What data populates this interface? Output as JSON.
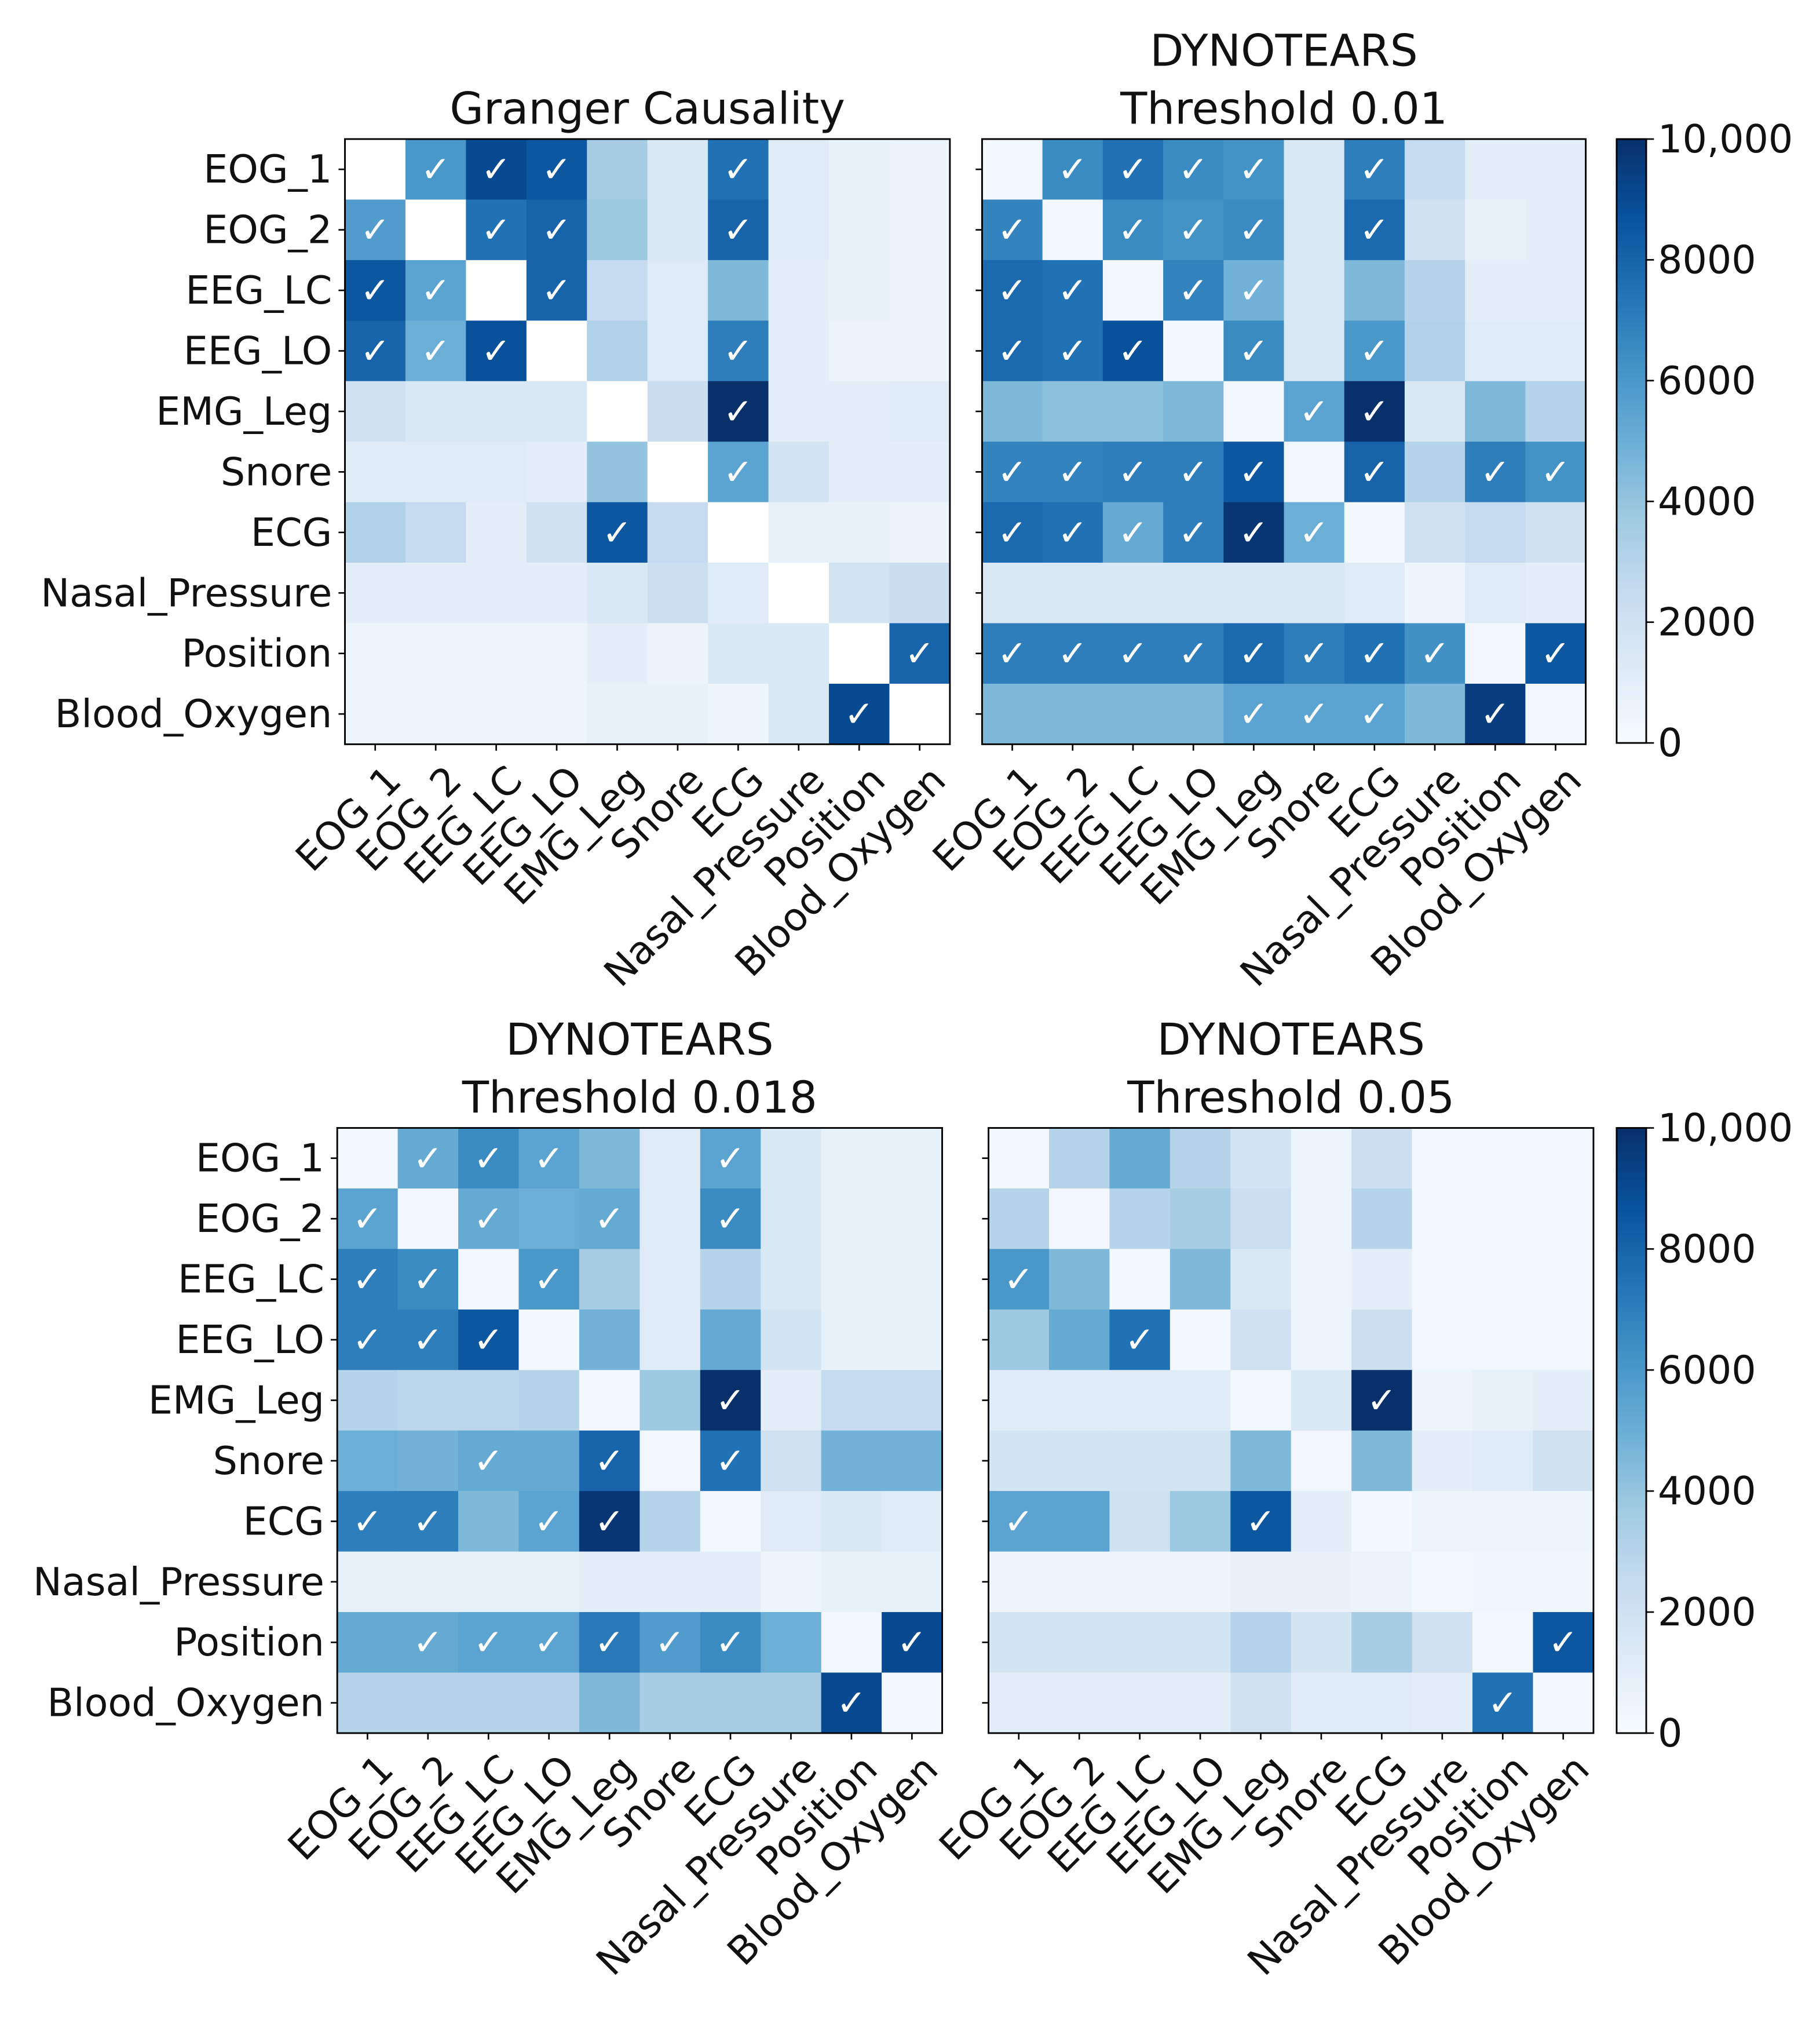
{
  "chart_data": {
    "type": "heatmap",
    "labels": [
      "EOG_1",
      "EOG_2",
      "EEG_LC",
      "EEG_LO",
      "EMG_Leg",
      "Snore",
      "ECG",
      "Nasal_Pressure",
      "Position",
      "Blood_Oxygen"
    ],
    "check_glyph": "✓",
    "colormap": [
      "#f7fbff",
      "#deebf7",
      "#c6dbef",
      "#9ecae1",
      "#6baed6",
      "#4292c6",
      "#2171b5",
      "#08519c",
      "#08306b"
    ],
    "colorbar": {
      "min": 0,
      "max": 10000,
      "ticks": [
        0,
        2000,
        4000,
        6000,
        8000,
        10000
      ],
      "tick_labels": [
        "0",
        "2000",
        "4000",
        "6000",
        "8000",
        "10,000"
      ]
    },
    "panels": [
      {
        "title_lines": [
          "Granger Causality"
        ],
        "diagonal_blank": true,
        "values": [
          [
            0,
            6000,
            9000,
            8500,
            3500,
            1500,
            7500,
            1200,
            800,
            600
          ],
          [
            5800,
            0,
            7500,
            8000,
            3800,
            1500,
            8000,
            1200,
            800,
            600
          ],
          [
            8500,
            5500,
            0,
            8000,
            2500,
            1300,
            4500,
            1000,
            800,
            600
          ],
          [
            8000,
            5000,
            8800,
            0,
            3200,
            1300,
            7000,
            1000,
            600,
            600
          ],
          [
            2000,
            1500,
            1500,
            1500,
            0,
            2300,
            10000,
            1000,
            1000,
            1200
          ],
          [
            1200,
            1200,
            1200,
            1000,
            4000,
            0,
            5500,
            1800,
            1000,
            1000
          ],
          [
            3200,
            2500,
            1000,
            2000,
            8500,
            2500,
            0,
            800,
            800,
            600
          ],
          [
            1000,
            1000,
            1000,
            1000,
            1500,
            2200,
            1200,
            0,
            1800,
            2300
          ],
          [
            500,
            500,
            500,
            500,
            1000,
            600,
            1500,
            1500,
            0,
            8000
          ],
          [
            500,
            500,
            500,
            500,
            800,
            800,
            500,
            1500,
            9000,
            0
          ]
        ],
        "checks": [
          [
            0,
            1,
            1,
            1,
            0,
            0,
            1,
            0,
            0,
            0
          ],
          [
            1,
            0,
            1,
            1,
            0,
            0,
            1,
            0,
            0,
            0
          ],
          [
            1,
            1,
            0,
            1,
            0,
            0,
            0,
            0,
            0,
            0
          ],
          [
            1,
            1,
            1,
            0,
            0,
            0,
            1,
            0,
            0,
            0
          ],
          [
            0,
            0,
            0,
            0,
            0,
            0,
            1,
            0,
            0,
            0
          ],
          [
            0,
            0,
            0,
            0,
            0,
            0,
            1,
            0,
            0,
            0
          ],
          [
            0,
            0,
            0,
            0,
            1,
            0,
            0,
            0,
            0,
            0
          ],
          [
            0,
            0,
            0,
            0,
            0,
            0,
            0,
            0,
            0,
            0
          ],
          [
            0,
            0,
            0,
            0,
            0,
            0,
            0,
            0,
            0,
            1
          ],
          [
            0,
            0,
            0,
            0,
            0,
            0,
            0,
            0,
            1,
            0
          ]
        ]
      },
      {
        "title_lines": [
          "DYNOTEARS",
          "Threshold 0.01"
        ],
        "diagonal_blank": false,
        "values": [
          [
            200,
            6500,
            7500,
            6500,
            6200,
            1500,
            7000,
            2500,
            1000,
            1000
          ],
          [
            6800,
            200,
            6500,
            6200,
            6500,
            1500,
            7800,
            2000,
            800,
            1000
          ],
          [
            7800,
            7500,
            200,
            6800,
            4800,
            1500,
            4500,
            3000,
            1000,
            1000
          ],
          [
            7800,
            7500,
            8800,
            200,
            6500,
            1500,
            6000,
            3200,
            1200,
            1200
          ],
          [
            4500,
            4200,
            4200,
            4500,
            300,
            5500,
            10000,
            1500,
            4500,
            3000
          ],
          [
            6800,
            6800,
            7000,
            7000,
            8500,
            300,
            8000,
            3000,
            7000,
            6200
          ],
          [
            7800,
            7500,
            5200,
            7000,
            9800,
            5000,
            200,
            2000,
            2500,
            2000
          ],
          [
            1500,
            1500,
            1500,
            1500,
            1500,
            1500,
            1200,
            500,
            1200,
            1000
          ],
          [
            7000,
            7000,
            7000,
            7000,
            7800,
            7000,
            7500,
            6300,
            300,
            8500
          ],
          [
            4500,
            4500,
            4500,
            4500,
            5500,
            5500,
            5500,
            4500,
            9500,
            300
          ]
        ],
        "checks": [
          [
            0,
            1,
            1,
            1,
            1,
            0,
            1,
            0,
            0,
            0
          ],
          [
            1,
            0,
            1,
            1,
            1,
            0,
            1,
            0,
            0,
            0
          ],
          [
            1,
            1,
            0,
            1,
            1,
            0,
            0,
            0,
            0,
            0
          ],
          [
            1,
            1,
            1,
            0,
            1,
            0,
            1,
            0,
            0,
            0
          ],
          [
            0,
            0,
            0,
            0,
            0,
            1,
            1,
            0,
            0,
            0
          ],
          [
            1,
            1,
            1,
            1,
            1,
            0,
            1,
            0,
            1,
            1
          ],
          [
            1,
            1,
            1,
            1,
            1,
            1,
            0,
            0,
            0,
            0
          ],
          [
            0,
            0,
            0,
            0,
            0,
            0,
            0,
            0,
            0,
            0
          ],
          [
            1,
            1,
            1,
            1,
            1,
            1,
            1,
            1,
            0,
            1
          ],
          [
            0,
            0,
            0,
            0,
            1,
            1,
            1,
            0,
            1,
            0
          ]
        ]
      },
      {
        "title_lines": [
          "DYNOTEARS",
          "Threshold 0.018"
        ],
        "diagonal_blank": false,
        "values": [
          [
            200,
            5200,
            6500,
            5500,
            4500,
            1200,
            5500,
            1500,
            800,
            800
          ],
          [
            5500,
            200,
            5200,
            5000,
            5200,
            1200,
            6500,
            1500,
            800,
            800
          ],
          [
            7000,
            6500,
            200,
            6000,
            3500,
            1200,
            3000,
            1500,
            800,
            800
          ],
          [
            7000,
            7000,
            8500,
            200,
            4800,
            1200,
            5200,
            1800,
            800,
            800
          ],
          [
            3000,
            2800,
            2800,
            3000,
            300,
            3800,
            10000,
            1000,
            2500,
            2500
          ],
          [
            5000,
            4800,
            5200,
            5200,
            8000,
            300,
            7500,
            2000,
            4800,
            4800
          ],
          [
            7000,
            7000,
            4500,
            5500,
            9800,
            3000,
            200,
            1200,
            1500,
            1200
          ],
          [
            800,
            800,
            800,
            800,
            1000,
            1000,
            1000,
            500,
            800,
            800
          ],
          [
            5200,
            5200,
            5500,
            5500,
            7200,
            5800,
            6500,
            5000,
            300,
            9000
          ],
          [
            3000,
            3000,
            3000,
            3000,
            4500,
            3500,
            3500,
            3500,
            9000,
            300
          ]
        ],
        "checks": [
          [
            0,
            1,
            1,
            1,
            0,
            0,
            1,
            0,
            0,
            0
          ],
          [
            1,
            0,
            1,
            0,
            1,
            0,
            1,
            0,
            0,
            0
          ],
          [
            1,
            1,
            0,
            1,
            0,
            0,
            0,
            0,
            0,
            0
          ],
          [
            1,
            1,
            1,
            0,
            0,
            0,
            0,
            0,
            0,
            0
          ],
          [
            0,
            0,
            0,
            0,
            0,
            0,
            1,
            0,
            0,
            0
          ],
          [
            0,
            0,
            1,
            0,
            1,
            0,
            1,
            0,
            0,
            0
          ],
          [
            1,
            1,
            0,
            1,
            1,
            0,
            0,
            0,
            0,
            0
          ],
          [
            0,
            0,
            0,
            0,
            0,
            0,
            0,
            0,
            0,
            0
          ],
          [
            0,
            1,
            1,
            1,
            1,
            1,
            1,
            0,
            0,
            1
          ],
          [
            0,
            0,
            0,
            0,
            0,
            0,
            0,
            0,
            1,
            0
          ]
        ]
      },
      {
        "title_lines": [
          "DYNOTEARS",
          "Threshold 0.05"
        ],
        "diagonal_blank": false,
        "values": [
          [
            200,
            3000,
            5200,
            3000,
            1800,
            500,
            2200,
            300,
            300,
            300
          ],
          [
            3000,
            200,
            3000,
            3500,
            2200,
            500,
            3000,
            300,
            300,
            300
          ],
          [
            6000,
            4500,
            200,
            4500,
            1500,
            500,
            1000,
            300,
            300,
            300
          ],
          [
            3800,
            5200,
            7500,
            200,
            2000,
            500,
            2200,
            300,
            300,
            300
          ],
          [
            1200,
            1200,
            1200,
            1200,
            300,
            1500,
            10000,
            500,
            800,
            1000
          ],
          [
            1800,
            1800,
            1800,
            1800,
            4500,
            300,
            4500,
            1000,
            1200,
            2000
          ],
          [
            5500,
            5500,
            2000,
            3800,
            8500,
            1000,
            200,
            500,
            500,
            500
          ],
          [
            500,
            500,
            500,
            500,
            700,
            700,
            600,
            300,
            400,
            400
          ],
          [
            1800,
            1800,
            1800,
            1800,
            3000,
            1800,
            3500,
            2000,
            200,
            8500
          ],
          [
            1000,
            1000,
            1000,
            1000,
            2000,
            1200,
            1200,
            1000,
            7500,
            200
          ]
        ],
        "checks": [
          [
            0,
            0,
            0,
            0,
            0,
            0,
            0,
            0,
            0,
            0
          ],
          [
            0,
            0,
            0,
            0,
            0,
            0,
            0,
            0,
            0,
            0
          ],
          [
            1,
            0,
            0,
            0,
            0,
            0,
            0,
            0,
            0,
            0
          ],
          [
            0,
            0,
            1,
            0,
            0,
            0,
            0,
            0,
            0,
            0
          ],
          [
            0,
            0,
            0,
            0,
            0,
            0,
            1,
            0,
            0,
            0
          ],
          [
            0,
            0,
            0,
            0,
            0,
            0,
            0,
            0,
            0,
            0
          ],
          [
            1,
            0,
            0,
            0,
            1,
            0,
            0,
            0,
            0,
            0
          ],
          [
            0,
            0,
            0,
            0,
            0,
            0,
            0,
            0,
            0,
            0
          ],
          [
            0,
            0,
            0,
            0,
            0,
            0,
            0,
            0,
            0,
            1
          ],
          [
            0,
            0,
            0,
            0,
            0,
            0,
            0,
            0,
            1,
            0
          ]
        ]
      }
    ]
  }
}
